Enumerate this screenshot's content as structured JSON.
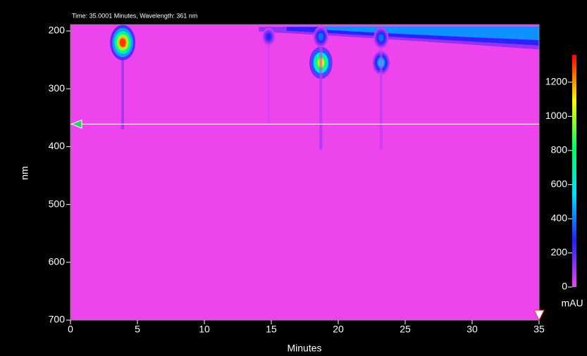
{
  "chart_data": {
    "type": "heatmap",
    "header": "Time: 35.0001 Minutes, Wavelength: 361 nm",
    "xlabel": "Minutes",
    "ylabel": "nm",
    "colorbar_label": "mAU",
    "xlim": [
      0,
      35
    ],
    "xticks": [
      0,
      5,
      10,
      15,
      20,
      25,
      30,
      35
    ],
    "ylim": [
      189,
      700
    ],
    "yticks": [
      200,
      300,
      400,
      500,
      600,
      700
    ],
    "clim": [
      0,
      1360
    ],
    "cticks": [
      0,
      200,
      400,
      600,
      800,
      1000,
      1200
    ],
    "colormap": [
      "#ee44ee",
      "#2020ff",
      "#00e0ff",
      "#00ff60",
      "#ffff00",
      "#ff0000"
    ],
    "background_value": 0,
    "cursor_x": 35.0001,
    "cursor_y": 361,
    "bands": [
      {
        "x": [
          12,
          35
        ],
        "y": [
          193,
          232
        ],
        "value": 450
      }
    ],
    "spots": [
      {
        "x": 3.9,
        "y": 220,
        "value": 1300
      },
      {
        "x": 18.7,
        "y": 255,
        "value": 1050
      },
      {
        "x": 23.2,
        "y": 255,
        "value": 520
      },
      {
        "x": 14.8,
        "y": 210,
        "value": 260
      },
      {
        "x": 18.7,
        "y": 210,
        "value": 380
      },
      {
        "x": 23.2,
        "y": 212,
        "value": 380
      }
    ]
  }
}
